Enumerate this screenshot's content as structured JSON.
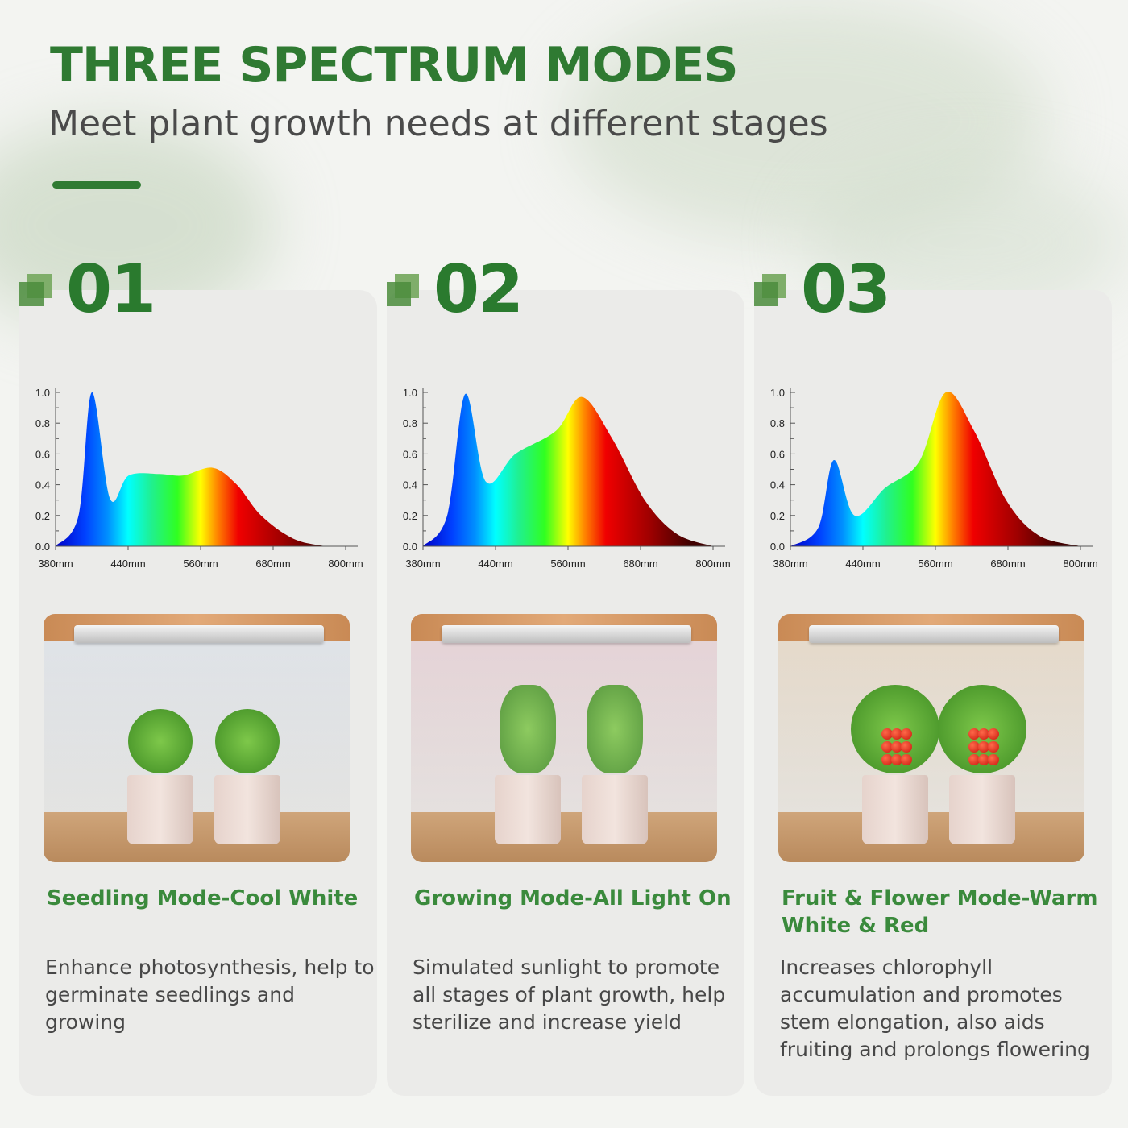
{
  "header": {
    "title": "THREE SPECTRUM MODES",
    "subtitle": "Meet plant growth needs at different stages"
  },
  "accent_color": "#2f7a32",
  "cards": [
    {
      "number": "01",
      "title": "Seedling Mode-Cool White",
      "description": "Enhance photosynthesis, help to germinate seedlings and growing",
      "photo": "two seedlings in white pots under cool white light bar"
    },
    {
      "number": "02",
      "title": "Growing Mode-All Light On",
      "description": "Simulated sunlight to promote all stages of plant growth, help sterilize and increase yield",
      "photo": "two young tomato plants under pink-white light bar"
    },
    {
      "number": "03",
      "title": "Fruit & Flower Mode-Warm White & Red",
      "description": "Increases chlorophyll accumulation and promotes stem elongation, also aids fruiting and prolongs flowering",
      "photo": "two tomato plants with red fruit under warm light bar"
    }
  ],
  "chart_data": [
    {
      "type": "area",
      "x_ticks": [
        "380mm",
        "440mm",
        "560mm",
        "680mm",
        "800mm"
      ],
      "y_ticks": [
        "0.0",
        "0.2",
        "0.4",
        "0.6",
        "0.8",
        "1.0"
      ],
      "ylim": [
        0,
        1
      ],
      "x": [
        380,
        399,
        410,
        425,
        441,
        491,
        531,
        580,
        620,
        660,
        713,
        767,
        800
      ],
      "y": [
        0,
        0.2,
        1.0,
        0.31,
        0.46,
        0.47,
        0.46,
        0.51,
        0.4,
        0.2,
        0.05,
        0,
        0
      ]
    },
    {
      "type": "area",
      "x_ticks": [
        "380mm",
        "440mm",
        "560mm",
        "680mm",
        "800mm"
      ],
      "y_ticks": [
        "0.0",
        "0.2",
        "0.4",
        "0.6",
        "0.8",
        "1.0"
      ],
      "ylim": [
        0,
        1
      ],
      "x": [
        380,
        400,
        415,
        432,
        473,
        540,
        583,
        633,
        687,
        740,
        800
      ],
      "y": [
        0,
        0.2,
        0.99,
        0.42,
        0.6,
        0.75,
        0.97,
        0.7,
        0.3,
        0.08,
        0
      ]
    },
    {
      "type": "area",
      "x_ticks": [
        "380mm",
        "440mm",
        "560mm",
        "680mm",
        "800mm"
      ],
      "y_ticks": [
        "0.0",
        "0.2",
        "0.4",
        "0.6",
        "0.8",
        "1.0"
      ],
      "ylim": [
        0,
        1
      ],
      "x": [
        380,
        403,
        416,
        433,
        477,
        533,
        577,
        624,
        677,
        731,
        800
      ],
      "y": [
        0,
        0.12,
        0.56,
        0.2,
        0.38,
        0.55,
        1.0,
        0.75,
        0.3,
        0.07,
        0
      ]
    }
  ]
}
